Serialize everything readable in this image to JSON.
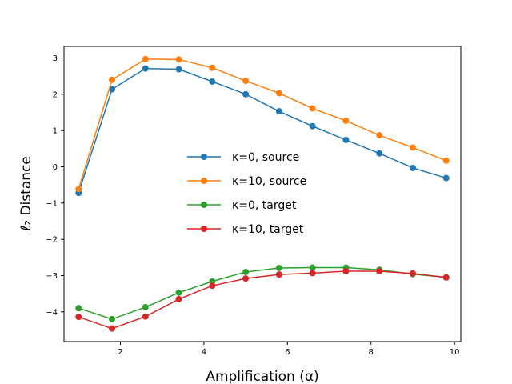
{
  "chart_data": {
    "type": "line",
    "title": "",
    "xlabel": "Amplification (α)",
    "ylabel": "ℓ₂ Distance",
    "xlim": [
      0.65,
      10.15
    ],
    "ylim": [
      -4.82,
      3.32
    ],
    "xticks": [
      2,
      4,
      6,
      8,
      10
    ],
    "yticks": [
      -4,
      -3,
      -2,
      -1,
      0,
      1,
      2,
      3
    ],
    "xtick_labels": [
      "2",
      "4",
      "6",
      "8",
      "10"
    ],
    "ytick_labels": [
      "−4",
      "−3",
      "−2",
      "−1",
      "0",
      "1",
      "2",
      "3"
    ],
    "grid": false,
    "legend_placement": "center-right",
    "x": [
      1.0,
      1.8,
      2.6,
      3.4,
      4.2,
      5.0,
      5.8,
      6.6,
      7.4,
      8.2,
      9.0,
      9.8
    ],
    "series": [
      {
        "name": "κ=0, source",
        "color": "#1f77b4",
        "values": [
          -0.72,
          2.14,
          2.71,
          2.69,
          2.35,
          2.0,
          1.53,
          1.12,
          0.74,
          0.37,
          -0.03,
          -0.31
        ]
      },
      {
        "name": "κ=10, source",
        "color": "#ff7f0e",
        "values": [
          -0.61,
          2.4,
          2.97,
          2.96,
          2.73,
          2.37,
          2.03,
          1.61,
          1.27,
          0.87,
          0.53,
          0.17
        ]
      },
      {
        "name": "κ=0, target",
        "color": "#2ca02c",
        "values": [
          -3.9,
          -4.2,
          -3.87,
          -3.47,
          -3.16,
          -2.9,
          -2.79,
          -2.78,
          -2.78,
          -2.84,
          -2.96,
          -3.05
        ]
      },
      {
        "name": "κ=10, target",
        "color": "#d62728",
        "values": [
          -4.14,
          -4.46,
          -4.13,
          -3.65,
          -3.28,
          -3.08,
          -2.97,
          -2.93,
          -2.88,
          -2.88,
          -2.94,
          -3.05
        ]
      }
    ]
  }
}
